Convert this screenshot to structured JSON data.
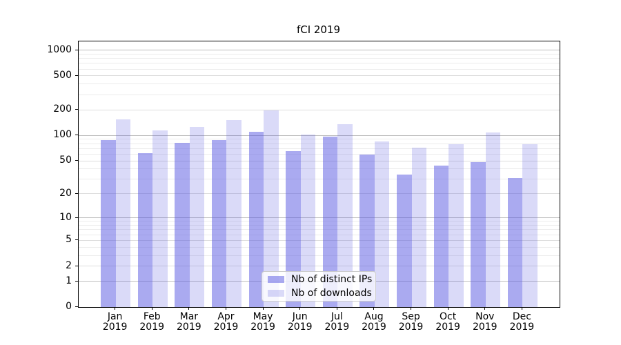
{
  "chart_data": {
    "type": "bar",
    "title": "fCI 2019",
    "categories": [
      "Jan",
      "Feb",
      "Mar",
      "Apr",
      "May",
      "Jun",
      "Jul",
      "Aug",
      "Sep",
      "Oct",
      "Nov",
      "Dec"
    ],
    "category_year": "2019",
    "series": [
      {
        "name": "Nb of distinct IPs",
        "color": "rgba(85,85,225,0.5)",
        "values": [
          89,
          62,
          82,
          89,
          111,
          65,
          97,
          59,
          34,
          44,
          48,
          31
        ]
      },
      {
        "name": "Nb of downloads",
        "color": "rgba(85,85,225,0.22)",
        "values": [
          155,
          115,
          125,
          151,
          197,
          103,
          135,
          85,
          72,
          79,
          109,
          79
        ]
      }
    ],
    "xlabel": "",
    "ylabel": "",
    "y_scale": "log10(1+x)",
    "y_ticks": [
      0,
      1,
      2,
      5,
      10,
      20,
      50,
      100,
      200,
      500,
      1000
    ],
    "y_minor_ticks": [
      3,
      4,
      6,
      7,
      8,
      9,
      30,
      40,
      60,
      70,
      80,
      90,
      300,
      400,
      600,
      700,
      800,
      900
    ],
    "ylim": [
      0,
      1266
    ],
    "grid": true,
    "legend_position": "lower-center",
    "colors": {
      "grid_major": "#bdbdbd",
      "grid_labeled": "#dddddd",
      "grid_minor": "#ececec",
      "axis": "#000000",
      "background": "#ffffff"
    }
  }
}
